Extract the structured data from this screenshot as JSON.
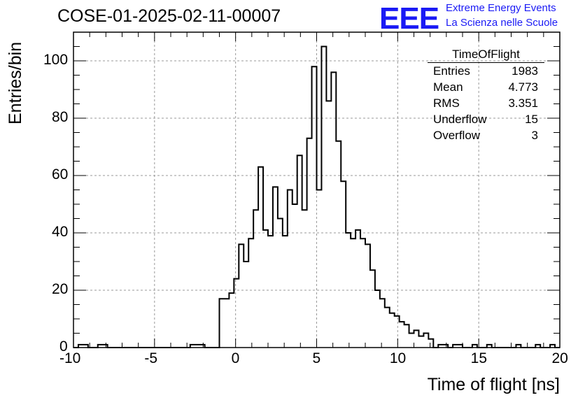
{
  "header": {
    "title": "COSE-01-2025-02-11-00007",
    "logo_text": "EEE",
    "logo_line1": "Extreme Energy Events",
    "logo_line2": "La Scienza nelle Scuole"
  },
  "stats": {
    "name": "TimeOfFlight",
    "rows": [
      {
        "key": "Entries",
        "value": "1983"
      },
      {
        "key": "Mean",
        "value": "4.773"
      },
      {
        "key": "RMS",
        "value": "3.351"
      },
      {
        "key": "Underflow",
        "value": "15"
      },
      {
        "key": "Overflow",
        "value": "3"
      }
    ]
  },
  "colors": {
    "logo": "#1a1af5",
    "line": "#000000",
    "grid": "#999999"
  },
  "chart_data": {
    "type": "histogram",
    "title": "COSE-01-2025-02-11-00007",
    "xlabel": "Time of flight [ns]",
    "ylabel": "Entries/bin",
    "xlim": [
      -10,
      20
    ],
    "ylim": [
      0,
      110
    ],
    "bin_width": 0.3,
    "x_start": -10,
    "x_ticks": [
      -10,
      -5,
      0,
      5,
      10,
      15,
      20
    ],
    "y_ticks": [
      0,
      20,
      40,
      60,
      80,
      100
    ],
    "grid": true,
    "values": [
      0,
      1,
      1,
      0,
      0,
      1,
      1,
      0,
      0,
      0,
      0,
      0,
      0,
      0,
      0,
      0,
      0,
      0,
      0,
      0,
      0,
      0,
      0,
      0,
      1,
      1,
      1,
      0,
      0,
      0,
      1,
      1,
      1,
      2,
      1,
      1,
      0,
      0,
      1,
      1,
      0,
      0,
      0,
      2,
      2,
      1,
      2,
      5,
      6,
      5,
      4,
      3,
      0,
      0,
      1,
      0,
      2,
      4,
      3,
      6,
      6,
      2,
      1,
      3,
      2,
      0,
      1,
      0,
      3,
      1,
      0,
      0,
      0,
      2,
      0,
      1,
      1,
      0,
      1,
      1,
      0,
      0,
      1,
      0,
      0,
      1,
      0,
      0,
      0,
      0,
      0,
      1,
      0,
      0,
      0,
      1,
      0,
      0,
      1
    ],
    "segment": {
      "x_start": -1.4,
      "values": [
        0,
        17,
        17,
        19,
        24,
        36,
        30,
        38,
        48,
        63,
        41,
        39,
        56,
        45,
        39,
        55,
        50,
        67,
        48,
        73,
        98,
        55,
        105,
        86,
        96,
        72,
        58,
        40,
        38,
        41,
        38,
        36,
        27,
        20,
        17,
        14,
        12,
        11,
        9,
        8,
        5,
        6,
        4,
        5,
        3,
        0
      ]
    }
  }
}
